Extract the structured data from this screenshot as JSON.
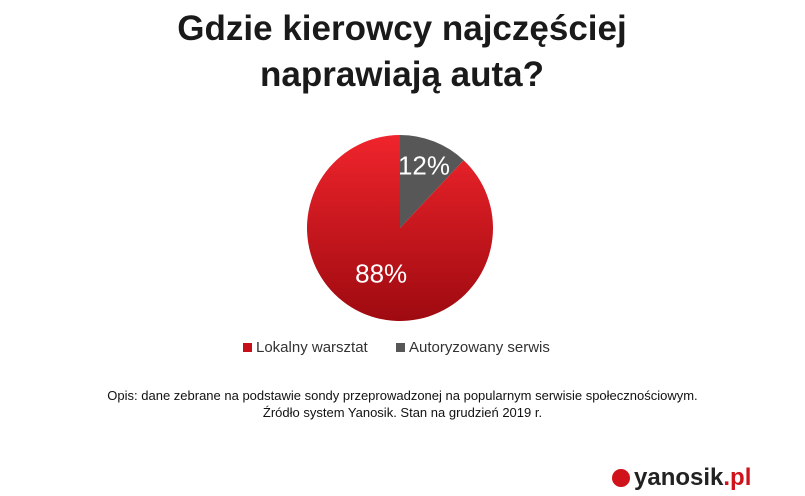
{
  "chart_data": {
    "type": "pie",
    "title": "Gdzie kierowcy najczęściej naprawiają auta?",
    "categories": [
      "Lokalny warsztat",
      "Autoryzowany serwis"
    ],
    "values": [
      88,
      12
    ],
    "value_labels": [
      "88%",
      "12%"
    ],
    "colors": [
      "#c8101a",
      "#575757"
    ],
    "notes": [
      "Opis: dane zebrane na podstawie sondy przeprowadzonej na popularnym serwisie społecznościowym.",
      "Źródło system Yanosik. Stan na grudzień 2019 r."
    ],
    "logo": {
      "name": "yanosik",
      "suffix": ".pl"
    }
  }
}
